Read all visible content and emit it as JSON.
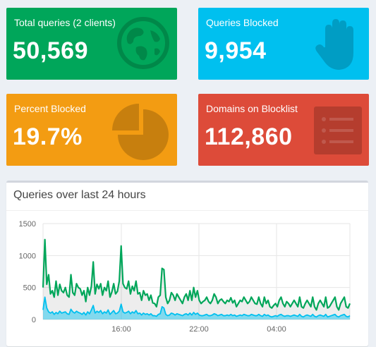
{
  "tiles": [
    {
      "label": "Total queries (2 clients)",
      "value": "50,569",
      "color": "#00a65a",
      "icon": "globe-icon"
    },
    {
      "label": "Queries Blocked",
      "value": "9,954",
      "color": "#00c0ef",
      "icon": "hand-icon"
    },
    {
      "label": "Percent Blocked",
      "value": "19.7%",
      "color": "#f39c12",
      "icon": "pie-chart-icon"
    },
    {
      "label": "Domains on Blocklist",
      "value": "112,860",
      "color": "#dd4b39",
      "icon": "list-icon"
    }
  ],
  "panel": {
    "title": "Queries over last 24 hours"
  },
  "chart_data": {
    "type": "area",
    "title": "",
    "xlabel": "",
    "ylabel": "",
    "ylim": [
      0,
      1500
    ],
    "yticks": [
      "0",
      "500",
      "1000",
      "1500"
    ],
    "xticks": [
      "16:00",
      "22:00",
      "04:00"
    ],
    "grid": true,
    "series": [
      {
        "color": "#00a65a",
        "values": [
          500,
          1250,
          550,
          700,
          400,
          450,
          350,
          600,
          380,
          550,
          450,
          420,
          500,
          380,
          350,
          700,
          420,
          380,
          560,
          500,
          480,
          380,
          450,
          280,
          500,
          380,
          520,
          900,
          400,
          550,
          480,
          560,
          380,
          500,
          450,
          600,
          350,
          430,
          560,
          400,
          440,
          600,
          1150,
          560,
          500,
          480,
          600,
          400,
          520,
          450,
          600,
          400,
          420,
          300,
          450,
          380,
          400,
          300,
          380,
          260,
          250,
          200,
          350,
          380,
          800,
          780,
          350,
          250,
          300,
          420,
          380,
          300,
          400,
          350,
          300,
          250,
          350,
          400,
          300,
          450,
          300,
          500,
          350,
          450,
          300,
          250,
          280,
          300,
          350,
          280,
          250,
          300,
          400,
          350,
          250,
          300,
          320,
          280,
          250,
          300,
          280,
          340,
          260,
          300,
          200,
          250,
          300,
          280,
          350,
          300,
          250,
          280,
          350,
          300,
          250,
          240,
          350,
          250,
          200,
          350,
          250,
          300,
          200,
          180,
          220,
          250,
          200,
          300,
          350,
          250,
          200,
          280,
          250,
          200,
          250,
          300,
          250,
          200,
          350,
          200,
          180,
          250,
          300,
          250,
          200,
          350,
          200,
          150,
          250,
          300,
          250,
          200,
          350,
          180,
          200,
          250,
          300,
          350,
          200,
          150,
          250,
          300,
          350,
          200,
          180,
          250
        ]
      },
      {
        "color": "#00c0ef",
        "values": [
          150,
          350,
          180,
          120,
          100,
          120,
          80,
          110,
          90,
          130,
          100,
          110,
          120,
          90,
          80,
          160,
          120,
          100,
          130,
          110,
          100,
          80,
          110,
          70,
          120,
          90,
          150,
          220,
          100,
          130,
          110,
          140,
          90,
          120,
          100,
          150,
          80,
          110,
          140,
          90,
          100,
          130,
          240,
          120,
          100,
          110,
          130,
          90,
          120,
          100,
          140,
          90,
          100,
          70,
          100,
          80,
          90,
          70,
          90,
          60,
          60,
          50,
          80,
          90,
          200,
          180,
          80,
          60,
          70,
          100,
          90,
          70,
          90,
          80,
          70,
          60,
          80,
          90,
          70,
          100,
          70,
          110,
          80,
          100,
          70,
          60,
          60,
          70,
          80,
          60,
          60,
          70,
          90,
          80,
          60,
          70,
          80,
          60,
          60,
          70,
          60,
          80,
          60,
          70,
          50,
          60,
          70,
          60,
          80,
          70,
          60,
          60,
          80,
          70,
          60,
          60,
          80,
          60,
          50,
          80,
          60,
          70,
          50,
          40,
          50,
          60,
          50,
          70,
          80,
          60,
          50,
          60,
          60,
          50,
          60,
          70,
          60,
          50,
          80,
          50,
          40,
          60,
          70,
          60,
          50,
          80,
          50,
          40,
          60,
          70,
          60,
          50,
          80,
          40,
          50,
          60,
          70,
          80,
          50,
          40,
          60,
          70,
          80,
          50,
          40,
          60
        ]
      }
    ]
  }
}
